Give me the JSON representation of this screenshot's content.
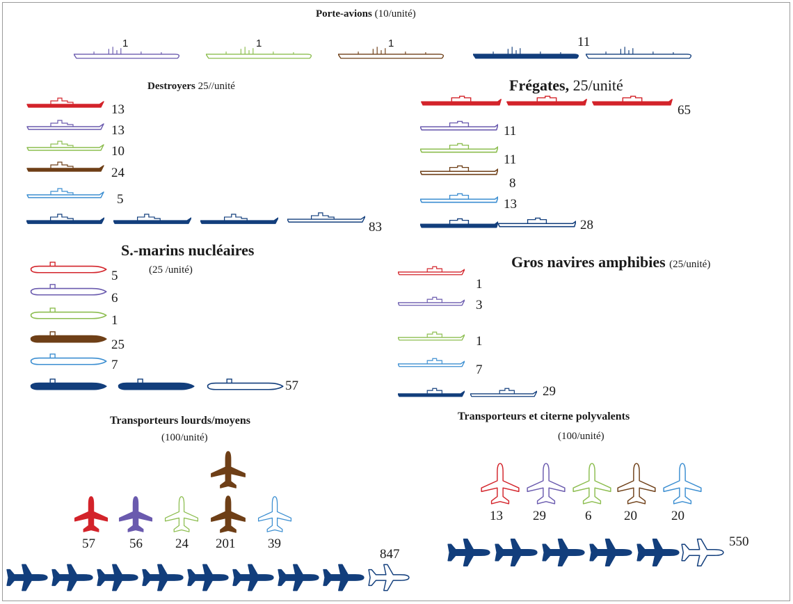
{
  "colors": {
    "red": "#d3232a",
    "purple": "#6a5aae",
    "green": "#8cbd4f",
    "brown": "#6e3f17",
    "lightblue": "#3b8ed1",
    "navy": "#123e7c"
  },
  "titles": {
    "carriers": "Porte-avions",
    "carriers_unit": "(10/unité)",
    "destroyers": "Destroyers",
    "destroyers_unit": "25//unité",
    "frigates": "Frégates,",
    "frigates_unit": "25/unité",
    "submarines": "S.-marins nucléaires",
    "submarines_unit": "(25 /unité)",
    "amphibious_a": "Gros",
    "amphibious_b": "navires amphibies",
    "amphibious_unit": "(25/unité)",
    "heavy_transport": "Transporteurs lourds/moyens",
    "heavy_transport_unit": "(100/unité)",
    "tanker_transport": "Transporteurs et citerne polyvalents",
    "tanker_transport_unit": "(100/unité)"
  },
  "chart_data": [
    {
      "type": "pictogram",
      "title": "Porte-avions",
      "unit": "10/unité",
      "icon": "aircraft-carrier-icon",
      "series": [
        {
          "color": "purple",
          "value": 1
        },
        {
          "color": "green",
          "value": 1
        },
        {
          "color": "brown",
          "value": 1
        },
        {
          "color": "navy",
          "value": 11
        }
      ]
    },
    {
      "type": "pictogram",
      "title": "Destroyers",
      "unit": "25//unité",
      "icon": "destroyer-icon",
      "series": [
        {
          "color": "red",
          "value": 13
        },
        {
          "color": "purple",
          "value": 13
        },
        {
          "color": "green",
          "value": 10
        },
        {
          "color": "brown",
          "value": 24
        },
        {
          "color": "lightblue",
          "value": 5
        },
        {
          "color": "navy",
          "value": 83
        }
      ]
    },
    {
      "type": "pictogram",
      "title": "Frégates,",
      "unit": "25/unité",
      "icon": "frigate-icon",
      "series": [
        {
          "color": "red",
          "value": 65
        },
        {
          "color": "purple",
          "value": 11
        },
        {
          "color": "green",
          "value": 11
        },
        {
          "color": "brown",
          "value": 8
        },
        {
          "color": "lightblue",
          "value": 13
        },
        {
          "color": "navy",
          "value": 28
        }
      ]
    },
    {
      "type": "pictogram",
      "title": "S.-marins nucléaires",
      "unit": "25 /unité",
      "icon": "submarine-icon",
      "series": [
        {
          "color": "red",
          "value": 5
        },
        {
          "color": "purple",
          "value": 6
        },
        {
          "color": "green",
          "value": 1
        },
        {
          "color": "brown",
          "value": 25
        },
        {
          "color": "lightblue",
          "value": 7
        },
        {
          "color": "navy",
          "value": 57
        }
      ]
    },
    {
      "type": "pictogram",
      "title": "Gros navires amphibies",
      "unit": "25/unité",
      "icon": "amphibious-ship-icon",
      "series": [
        {
          "color": "red",
          "value": 1
        },
        {
          "color": "purple",
          "value": 3
        },
        {
          "color": "green",
          "value": 1
        },
        {
          "color": "lightblue",
          "value": 7
        },
        {
          "color": "navy",
          "value": 29
        }
      ]
    },
    {
      "type": "pictogram",
      "title": "Transporteurs lourds/moyens",
      "unit": "100/unité",
      "icon": "transport-plane-icon",
      "series": [
        {
          "color": "red",
          "value": 57
        },
        {
          "color": "purple",
          "value": 56
        },
        {
          "color": "green",
          "value": 24
        },
        {
          "color": "brown",
          "value": 201
        },
        {
          "color": "lightblue",
          "value": 39
        },
        {
          "color": "navy",
          "value": 847
        }
      ]
    },
    {
      "type": "pictogram",
      "title": "Transporteurs et citerne polyvalents",
      "unit": "100/unité",
      "icon": "tanker-plane-icon",
      "series": [
        {
          "color": "red",
          "value": 13
        },
        {
          "color": "purple",
          "value": 29
        },
        {
          "color": "green",
          "value": 6
        },
        {
          "color": "brown",
          "value": 20
        },
        {
          "color": "lightblue",
          "value": 20
        },
        {
          "color": "navy",
          "value": 550
        }
      ]
    }
  ]
}
